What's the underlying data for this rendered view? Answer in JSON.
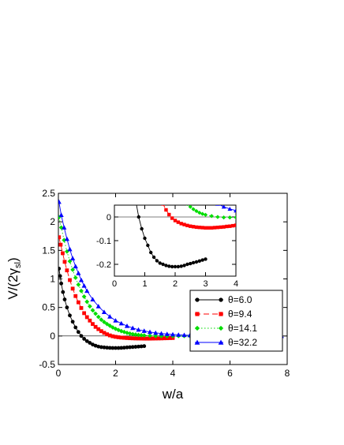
{
  "chart_data": [
    {
      "type": "line",
      "panel": "main",
      "xlabel": "w/a",
      "ylabel_main": "V/(2γ",
      "ylabel_sub": "sl",
      "ylabel_close": ")",
      "xlim": [
        0,
        8
      ],
      "ylim": [
        -0.5,
        2.5
      ],
      "xticks": [
        0,
        2,
        4,
        6,
        8
      ],
      "yticks": [
        -0.5,
        0,
        0.5,
        1,
        1.5,
        2,
        2.5
      ],
      "xtick_labels": [
        "0",
        "2",
        "4",
        "6",
        "8"
      ],
      "ytick_labels": [
        "-0.5",
        "0",
        "0.5",
        "1",
        "1.5",
        "2",
        "2.5"
      ],
      "legend_position": "right",
      "legend_prefix": "θ=",
      "series": [
        {
          "name": "6.0",
          "color": "#000000",
          "marker": "circle",
          "dash": "",
          "x": [
            0.02,
            0.06,
            0.1,
            0.16,
            0.22,
            0.3,
            0.4,
            0.5,
            0.6,
            0.7,
            0.8,
            0.9,
            1.0,
            1.1,
            1.2,
            1.3,
            1.4,
            1.5,
            1.6,
            1.7,
            1.8,
            1.9,
            2.0,
            2.1,
            2.2,
            2.3,
            2.4,
            2.5,
            2.6,
            2.7,
            2.8,
            2.9,
            3.0
          ],
          "y": [
            1.18,
            1.05,
            0.92,
            0.77,
            0.64,
            0.5,
            0.36,
            0.25,
            0.15,
            0.07,
            0.0,
            -0.05,
            -0.09,
            -0.12,
            -0.15,
            -0.17,
            -0.185,
            -0.195,
            -0.2,
            -0.205,
            -0.208,
            -0.21,
            -0.21,
            -0.21,
            -0.208,
            -0.205,
            -0.2,
            -0.197,
            -0.193,
            -0.19,
            -0.186,
            -0.182,
            -0.178
          ]
        },
        {
          "name": "9.4",
          "color": "#ff0000",
          "marker": "square",
          "dash": "7,4",
          "x": [
            0.02,
            0.08,
            0.15,
            0.22,
            0.3,
            0.4,
            0.5,
            0.6,
            0.7,
            0.8,
            0.9,
            1.0,
            1.1,
            1.2,
            1.3,
            1.4,
            1.5,
            1.6,
            1.7,
            1.8,
            1.9,
            2.0,
            2.1,
            2.2,
            2.3,
            2.4,
            2.5,
            2.6,
            2.7,
            2.8,
            2.9,
            3.0,
            3.1,
            3.2,
            3.3,
            3.4,
            3.5,
            3.6,
            3.7,
            3.8,
            3.9,
            4.0
          ],
          "y": [
            1.73,
            1.6,
            1.45,
            1.3,
            1.15,
            0.98,
            0.83,
            0.7,
            0.59,
            0.49,
            0.4,
            0.33,
            0.27,
            0.21,
            0.16,
            0.12,
            0.085,
            0.055,
            0.03,
            0.01,
            -0.005,
            -0.015,
            -0.022,
            -0.028,
            -0.032,
            -0.036,
            -0.039,
            -0.041,
            -0.043,
            -0.044,
            -0.045,
            -0.046,
            -0.046,
            -0.046,
            -0.045,
            -0.044,
            -0.043,
            -0.042,
            -0.04,
            -0.039,
            -0.037,
            -0.035
          ]
        },
        {
          "name": "14.1",
          "color": "#00dd00",
          "marker": "diamond",
          "dash": "1.5,2.5",
          "x": [
            0.02,
            0.1,
            0.2,
            0.3,
            0.4,
            0.5,
            0.6,
            0.7,
            0.8,
            0.9,
            1.0,
            1.1,
            1.2,
            1.3,
            1.4,
            1.5,
            1.6,
            1.7,
            1.8,
            1.9,
            2.0,
            2.1,
            2.2,
            2.3,
            2.4,
            2.5,
            2.6,
            2.7,
            2.8,
            2.9,
            3.0,
            3.2,
            3.4,
            3.6,
            3.8,
            4.0,
            4.2,
            4.4,
            4.6,
            4.8,
            5.0
          ],
          "y": [
            2.08,
            1.9,
            1.68,
            1.48,
            1.31,
            1.16,
            1.02,
            0.9,
            0.79,
            0.69,
            0.6,
            0.52,
            0.45,
            0.39,
            0.335,
            0.285,
            0.245,
            0.21,
            0.18,
            0.15,
            0.125,
            0.105,
            0.085,
            0.07,
            0.055,
            0.043,
            0.033,
            0.025,
            0.018,
            0.013,
            0.009,
            0.004,
            0.0,
            -0.002,
            -0.002,
            -0.002,
            -0.001,
            0.0,
            0.0,
            0.0,
            0.0
          ]
        },
        {
          "name": "32.2",
          "color": "#0000ff",
          "marker": "triangle",
          "dash": "",
          "x": [
            0.02,
            0.1,
            0.2,
            0.3,
            0.4,
            0.5,
            0.6,
            0.7,
            0.8,
            0.9,
            1.0,
            1.2,
            1.4,
            1.6,
            1.8,
            2.0,
            2.2,
            2.4,
            2.6,
            2.8,
            3.0,
            3.2,
            3.4,
            3.6,
            3.8,
            4.0,
            4.2,
            4.4,
            4.6,
            4.8,
            5.0,
            5.2,
            5.4,
            5.6,
            5.8,
            6.0,
            6.2,
            6.4,
            6.6,
            6.8,
            7.0,
            7.2,
            7.4,
            7.6,
            7.8
          ],
          "y": [
            2.35,
            2.12,
            1.9,
            1.7,
            1.52,
            1.36,
            1.22,
            1.1,
            0.98,
            0.88,
            0.79,
            0.64,
            0.52,
            0.42,
            0.34,
            0.27,
            0.22,
            0.175,
            0.14,
            0.11,
            0.09,
            0.07,
            0.055,
            0.043,
            0.034,
            0.027,
            0.021,
            0.016,
            0.013,
            0.01,
            0.008,
            0.006,
            0.005,
            0.004,
            0.003,
            0.002,
            0.002,
            0.001,
            0.001,
            0.001,
            0.0,
            0.0,
            0.0,
            0.0,
            0.0
          ]
        }
      ]
    },
    {
      "type": "line",
      "panel": "inset",
      "xlim": [
        0,
        4
      ],
      "ylim": [
        -0.25,
        0.05
      ],
      "xticks": [
        0,
        1,
        2,
        3,
        4
      ],
      "yticks": [
        -0.2,
        -0.1,
        0
      ],
      "xtick_labels": [
        "0",
        "1",
        "2",
        "3",
        "4"
      ],
      "ytick_labels": [
        "-0.2",
        "-0.1",
        "0"
      ],
      "series_ref": "same data as main panel, clipped to inset ranges"
    }
  ]
}
